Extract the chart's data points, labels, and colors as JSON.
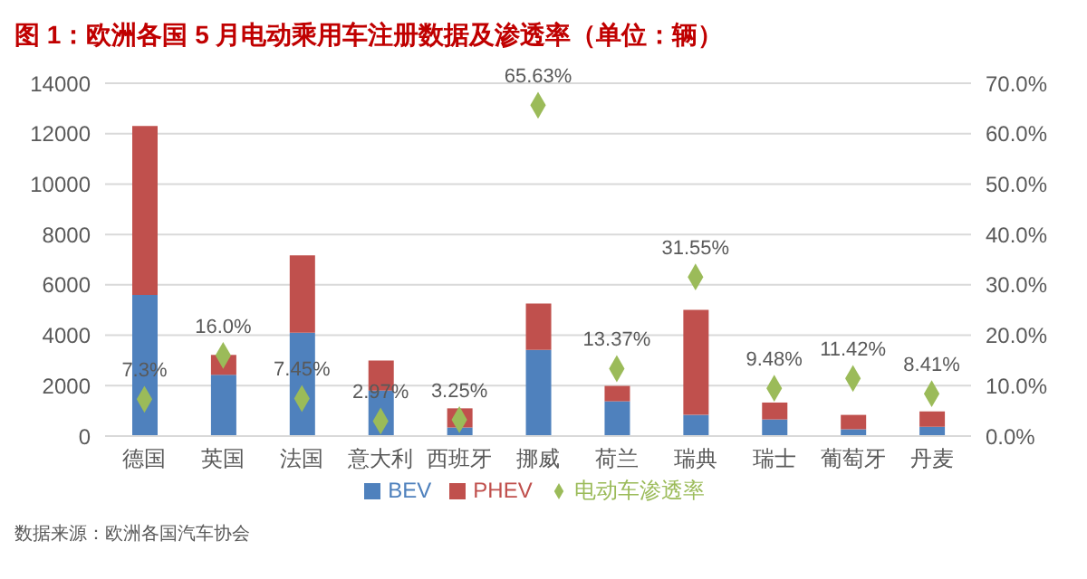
{
  "chart_data": {
    "type": "bar",
    "title": "图 1：欧洲各国 5 月电动乘用车注册数据及渗透率（单位：辆）",
    "categories": [
      "德国",
      "英国",
      "法国",
      "意大利",
      "西班牙",
      "挪威",
      "荷兰",
      "瑞典",
      "瑞士",
      "葡萄牙",
      "丹麦"
    ],
    "series": [
      {
        "name": "BEV",
        "color": "#4f81bd",
        "values": [
          5600,
          2430,
          4100,
          1800,
          340,
          3420,
          1380,
          840,
          660,
          270,
          370
        ]
      },
      {
        "name": "PHEV",
        "color": "#c0504d",
        "values": [
          6700,
          790,
          3070,
          1200,
          760,
          1840,
          610,
          4170,
          670,
          570,
          610
        ]
      },
      {
        "name": "电动车渗透率",
        "type": "scatter",
        "axis": "y2",
        "color": "#9bbb59",
        "marker": "diamond",
        "values": [
          7.3,
          16.0,
          7.45,
          2.97,
          3.25,
          65.63,
          13.37,
          31.55,
          9.48,
          11.42,
          8.41
        ],
        "value_labels": [
          "7.3%",
          "16.0%",
          "7.45%",
          "2.97%",
          "3.25%",
          "65.63%",
          "13.37%",
          "31.55%",
          "9.48%",
          "11.42%",
          "8.41%"
        ]
      }
    ],
    "stacked": true,
    "ylim": [
      0,
      14000
    ],
    "yticks": [
      0,
      2000,
      4000,
      6000,
      8000,
      10000,
      12000,
      14000
    ],
    "y2lim": [
      0,
      70
    ],
    "y2ticks": [
      {
        "value": 0,
        "label": "0.0%"
      },
      {
        "value": 10,
        "label": "10.0%"
      },
      {
        "value": 20,
        "label": "20.0%"
      },
      {
        "value": 30,
        "label": "30.0%"
      },
      {
        "value": 40,
        "label": "40.0%"
      },
      {
        "value": 50,
        "label": "50.0%"
      },
      {
        "value": 60,
        "label": "60.0%"
      },
      {
        "value": 70,
        "label": "70.0%"
      }
    ],
    "grid": "y",
    "legend": "bottom",
    "annotations": [
      "数据来源：欧洲各国汽车协会"
    ]
  }
}
